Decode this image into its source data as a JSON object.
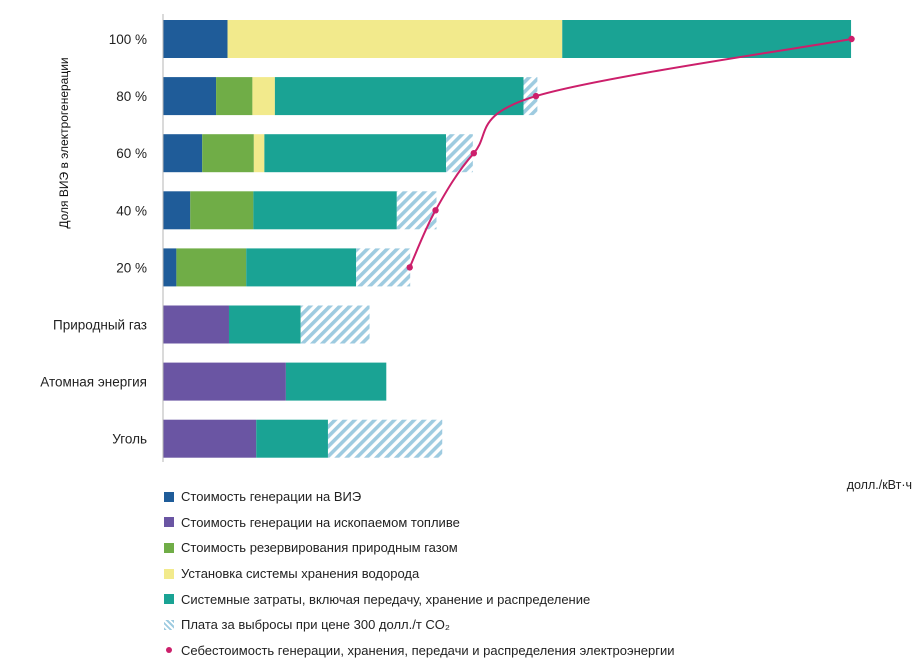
{
  "chart_data": {
    "type": "bar",
    "orientation": "horizontal",
    "stacked": true,
    "ylabel": "Доля ВИЭ в электрогенерации",
    "xlabel": "долл./кВт·ч",
    "categories": [
      "100 %",
      "80 %",
      "60 %",
      "40 %",
      "20 %",
      "Природный газ",
      "Атомная энергия",
      "Уголь"
    ],
    "series": [
      {
        "name": "Стоимость генерации на ВИЭ",
        "color": "#1f5c99",
        "values": [
          0.0675,
          0.0555,
          0.041,
          0.0285,
          0.014,
          0,
          0,
          0
        ]
      },
      {
        "name": "Стоимость генерации на ископаемом топливе",
        "color": "#6a55a3",
        "values": [
          0,
          0,
          0,
          0,
          0,
          0.069,
          0.1285,
          0.0975
        ]
      },
      {
        "name": "Стоимость резервирования природным газом",
        "color": "#70ad47",
        "values": [
          0,
          0.038,
          0.054,
          0.066,
          0.073,
          0,
          0,
          0
        ]
      },
      {
        "name": "Установка системы хранения водорода",
        "color": "#f2ea8c",
        "values": [
          0.35,
          0.0235,
          0.011,
          0,
          0,
          0,
          0,
          0
        ]
      },
      {
        "name": "Системные затраты, включая передачу, хранение и распределение",
        "color": "#1aa394",
        "values": [
          0.302,
          0.26,
          0.19,
          0.15,
          0.115,
          0.075,
          0.105,
          0.075
        ]
      },
      {
        "name": "Плата за выбросы при цене 300 долл./т CO₂",
        "color": "#9ecbe0",
        "pattern": "hatch",
        "values": [
          0,
          0.0145,
          0.028,
          0.0415,
          0.0565,
          0.072,
          0,
          0.1195
        ]
      }
    ],
    "line_series": {
      "name": "Себестоимость генерации, хранения, передачи и распределения электроэнергии",
      "color": "#cc1f6b",
      "categories": [
        "20 %",
        "40 %",
        "60 %",
        "80 %",
        "100 %"
      ],
      "values": [
        0.258,
        0.285,
        0.325,
        0.39,
        0.72
      ]
    },
    "xlim": [
      0,
      0.755
    ],
    "grid": false,
    "legend": "bottom"
  }
}
